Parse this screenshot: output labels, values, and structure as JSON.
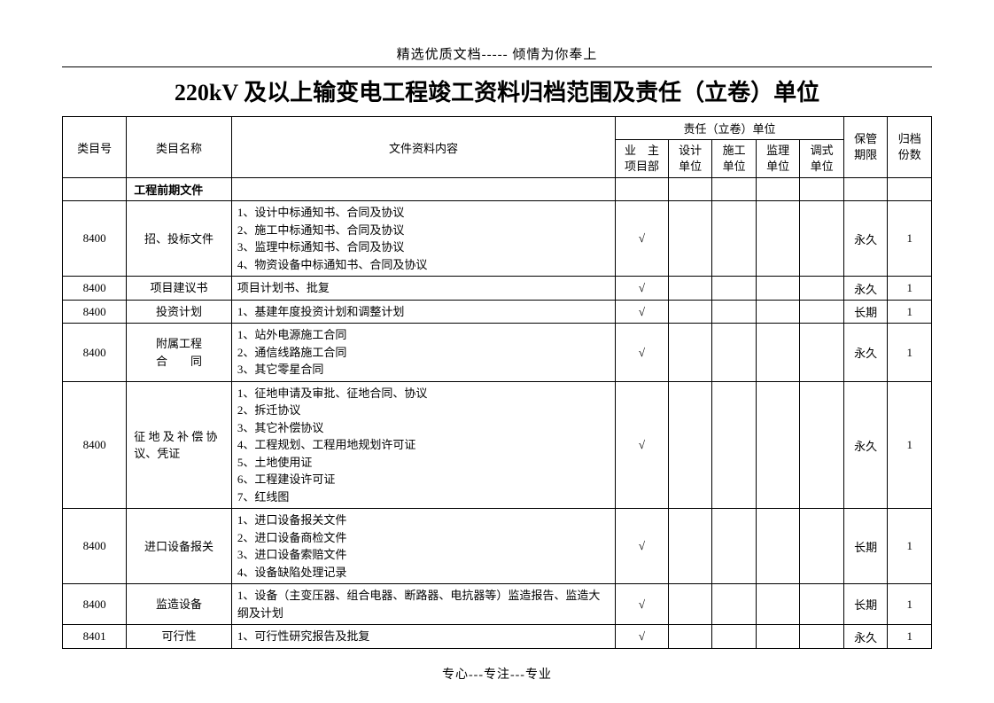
{
  "header": "精选优质文档----- 倾情为你奉上",
  "title": "220kV 及以上输变电工程竣工资料归档范围及责任（立卷）单位",
  "footer": "专心---专注---专业",
  "table": {
    "headers": {
      "category_num": "类目号",
      "category_name": "类目名称",
      "content": "文件资料内容",
      "responsibility_unit": "责任（立卷）单位",
      "owner_dept": "业　主\n项目部",
      "design_unit": "设计\n单位",
      "construct_unit": "施工\n单位",
      "supervise_unit": "监理\n单位",
      "debug_unit": "调式\n单位",
      "retention": "保管\n期限",
      "copies": "归档\n份数"
    },
    "section_header": "工程前期文件",
    "rows": [
      {
        "num": "8400",
        "name": "招、投标文件",
        "content": "1、设计中标通知书、合同及协议\n2、施工中标通知书、合同及协议\n3、监理中标通知书、合同及协议\n4、物资设备中标通知书、合同及协议",
        "owner": "√",
        "design": "",
        "construct": "",
        "supervise": "",
        "debug": "",
        "retention": "永久",
        "copies": "1"
      },
      {
        "num": "8400",
        "name": "项目建议书",
        "content": "项目计划书、批复",
        "owner": "√",
        "design": "",
        "construct": "",
        "supervise": "",
        "debug": "",
        "retention": "永久",
        "copies": "1"
      },
      {
        "num": "8400",
        "name": "投资计划",
        "content": "1、基建年度投资计划和调整计划",
        "owner": "√",
        "design": "",
        "construct": "",
        "supervise": "",
        "debug": "",
        "retention": "长期",
        "copies": "1"
      },
      {
        "num": "8400",
        "name": "附属工程\n合　　同",
        "content": "1、站外电源施工合同\n2、通信线路施工合同\n3、其它零星合同",
        "owner": "√",
        "design": "",
        "construct": "",
        "supervise": "",
        "debug": "",
        "retention": "永久",
        "copies": "1"
      },
      {
        "num": "8400",
        "name": "征 地 及 补 偿 协议、凭证",
        "content": "1、征地申请及审批、征地合同、协议\n2、拆迁协议\n3、其它补偿协议\n4、工程规划、工程用地规划许可证\n5、土地使用证\n6、工程建设许可证\n7、红线图",
        "owner": "√",
        "design": "",
        "construct": "",
        "supervise": "",
        "debug": "",
        "retention": "永久",
        "copies": "1",
        "name_align": "left"
      },
      {
        "num": "8400",
        "name": "进口设备报关",
        "content": "1、进口设备报关文件\n2、进口设备商检文件\n3、进口设备索赔文件\n4、设备缺陷处理记录",
        "owner": "√",
        "design": "",
        "construct": "",
        "supervise": "",
        "debug": "",
        "retention": "长期",
        "copies": "1"
      },
      {
        "num": "8400",
        "name": "监造设备",
        "content": "1、设备（主变压器、组合电器、断路器、电抗器等）监造报告、监造大纲及计划",
        "owner": "√",
        "design": "",
        "construct": "",
        "supervise": "",
        "debug": "",
        "retention": "长期",
        "copies": "1"
      },
      {
        "num": "8401",
        "name": "可行性",
        "content": "1、可行性研究报告及批复",
        "owner": "√",
        "design": "",
        "construct": "",
        "supervise": "",
        "debug": "",
        "retention": "永久",
        "copies": "1"
      }
    ]
  }
}
